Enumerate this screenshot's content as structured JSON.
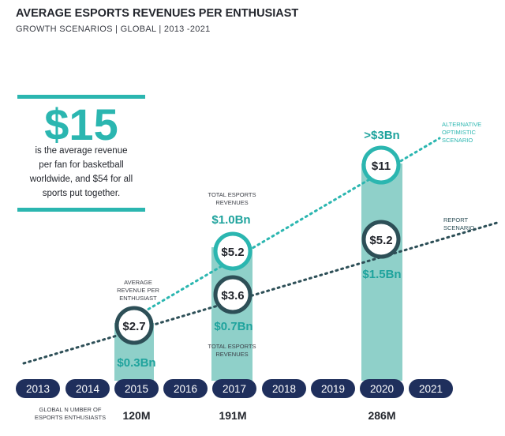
{
  "chart_data": {
    "type": "bar",
    "title": "AVERAGE ESPORTS REVENUES PER ENTHUSIAST",
    "subtitle": "GROWTH SCENARIOS | GLOBAL | 2013 -2021",
    "years": [
      "2013",
      "2014",
      "2015",
      "2016",
      "2017",
      "2018",
      "2019",
      "2020",
      "2021"
    ],
    "bars": [
      {
        "year": "2015",
        "report_value": "$2.7",
        "report_value_num": 2.7,
        "revenue": "$0.3Bn",
        "revenue_num": 0.3
      },
      {
        "year": "2017",
        "report_value": "$3.6",
        "report_value_num": 3.6,
        "revenue": "$0.7Bn",
        "revenue_num": 0.7,
        "alt_value": "$5.2",
        "alt_value_num": 5.2,
        "alt_revenue": "$1.0Bn",
        "alt_revenue_num": 1.0
      },
      {
        "year": "2020",
        "report_value": "$5.2",
        "report_value_num": 5.2,
        "revenue": "$1.5Bn",
        "revenue_num": 1.5,
        "alt_value": "$11",
        "alt_value_num": 11,
        "alt_revenue": ">$3Bn",
        "alt_revenue_num": 3
      }
    ],
    "enthusiasts": [
      {
        "year": "2015",
        "value": "120M"
      },
      {
        "year": "2017",
        "value": "191M"
      },
      {
        "year": "2020",
        "value": "286M"
      }
    ],
    "series": [
      {
        "name": "ALTERNATIVE OPTIMISTIC SCENARIO",
        "name_lines": [
          "ALTERNATIVE",
          "OPTIMISTIC",
          "SCENARIO"
        ]
      },
      {
        "name": "REPORT SCENARIO",
        "name_lines": [
          "REPORT",
          "SCENARIO"
        ]
      }
    ],
    "labels": {
      "avg_revenue_lines": [
        "AVERAGE",
        "REVENUE PER",
        "ENTHUSIAST"
      ],
      "total_revenues_top_lines": [
        "TOTAL ESPORTS",
        "REVENUES"
      ],
      "total_revenues_bottom_lines": [
        "TOTAL ESPORTS",
        "REVENUES"
      ],
      "enthusiasts_label_lines": [
        "GLOBAL N UMBER OF",
        "ESPORTS ENTHUSIASTS"
      ]
    },
    "callout": {
      "big_number": "$15",
      "lines": [
        "is the average revenue",
        "per fan for basketball",
        "worldwide, and $54 for all",
        "sports put together."
      ]
    },
    "colors": {
      "teal": "#2bb6b0",
      "teal_dark": "#1fa39d",
      "bar_fill": "#8fd0c9",
      "dark_circle": "#2d4f57",
      "navy": "#1f2f5c",
      "text_dark": "#23262d",
      "text_gray": "#4a4e57"
    }
  }
}
